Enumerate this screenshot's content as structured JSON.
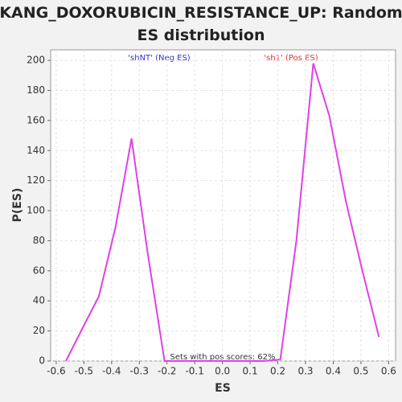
{
  "chart_data": {
    "type": "line",
    "title": "KANG_DOXORUBICIN_RESISTANCE_UP: Random ES distribution",
    "x_label": "ES",
    "y_label": "P(ES)",
    "annotations": [
      "'shNT' (Neg ES)",
      "'sh1' (Pos ES)",
      "Sets with pos scores: 62%"
    ],
    "x": [
      -0.565,
      -0.499,
      -0.446,
      -0.386,
      -0.328,
      -0.27,
      -0.209,
      -0.148,
      -0.087,
      -0.028,
      0.03,
      0.09,
      0.15,
      0.209,
      0.267,
      0.328,
      0.386,
      0.446,
      0.504,
      0.565
    ],
    "series": [
      {
        "name": "P(ES)",
        "color": "#e040e8",
        "values": [
          0,
          24,
          43,
          89,
          148,
          72,
          0,
          0,
          0,
          0,
          0,
          0,
          0,
          1,
          80,
          198,
          163,
          106,
          61,
          16
        ]
      }
    ],
    "xlim": [
      -0.62,
      0.625
    ],
    "xticks": [
      -0.6,
      -0.5,
      -0.4,
      -0.3,
      -0.2,
      -0.1,
      {
        "value": 0,
        "label": "0.0"
      },
      0.1,
      0.2,
      0.3,
      0.4,
      0.5,
      0.6
    ],
    "ylim": [
      0,
      207
    ],
    "yticks": [
      0,
      20,
      40,
      60,
      80,
      100,
      120,
      140,
      160,
      180,
      200
    ],
    "grid": true
  }
}
